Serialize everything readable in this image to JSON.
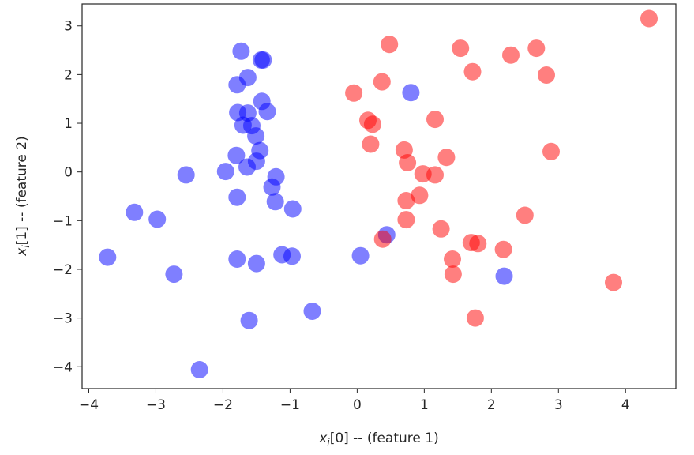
{
  "chart_data": {
    "type": "scatter",
    "xlabel": {
      "var": "x",
      "sub": "i",
      "rest": "[0] -- (feature 1)"
    },
    "ylabel": {
      "var": "x",
      "sub": "i",
      "rest": "[1] -- (feature 2)"
    },
    "xlim": [
      -4.1,
      4.75
    ],
    "ylim": [
      -4.45,
      3.45
    ],
    "xticks": [
      -4,
      -3,
      -2,
      -1,
      0,
      1,
      2,
      3,
      4
    ],
    "yticks": [
      -4,
      -3,
      -2,
      -1,
      0,
      1,
      2,
      3
    ],
    "xtick_labels": [
      "−4",
      "−3",
      "−2",
      "−1",
      "0",
      "1",
      "2",
      "3",
      "4"
    ],
    "ytick_labels": [
      "−4",
      "−3",
      "−2",
      "−1",
      "0",
      "1",
      "2",
      "3"
    ],
    "grid": false,
    "series": [
      {
        "color": "#0000ff",
        "opacity": 0.5,
        "points": [
          [
            -1.73,
            2.48
          ],
          [
            -1.4,
            2.3
          ],
          [
            -1.43,
            2.3
          ],
          [
            -1.63,
            1.94
          ],
          [
            -1.79,
            1.79
          ],
          [
            -1.42,
            1.45
          ],
          [
            -1.34,
            1.24
          ],
          [
            -1.78,
            1.22
          ],
          [
            -1.63,
            1.21
          ],
          [
            -1.7,
            0.96
          ],
          [
            -1.57,
            0.95
          ],
          [
            -1.51,
            0.74
          ],
          [
            -1.45,
            0.44
          ],
          [
            -1.8,
            0.34
          ],
          [
            -1.5,
            0.22
          ],
          [
            -1.64,
            0.1
          ],
          [
            -1.96,
            0.01
          ],
          [
            -2.55,
            -0.06
          ],
          [
            -1.21,
            -0.1
          ],
          [
            -1.27,
            -0.31
          ],
          [
            -1.79,
            -0.52
          ],
          [
            -1.22,
            -0.61
          ],
          [
            -0.96,
            -0.76
          ],
          [
            -3.32,
            -0.83
          ],
          [
            -2.98,
            -0.97
          ],
          [
            0.8,
            1.63
          ],
          [
            0.44,
            -1.29
          ],
          [
            0.05,
            -1.72
          ],
          [
            -1.12,
            -1.7
          ],
          [
            -0.97,
            -1.73
          ],
          [
            -1.79,
            -1.79
          ],
          [
            -1.5,
            -1.88
          ],
          [
            -3.72,
            -1.75
          ],
          [
            -2.73,
            -2.1
          ],
          [
            2.19,
            -2.14
          ],
          [
            -0.67,
            -2.86
          ],
          [
            -1.61,
            -3.05
          ],
          [
            -2.35,
            -4.06
          ]
        ]
      },
      {
        "color": "#ff0000",
        "opacity": 0.5,
        "points": [
          [
            4.35,
            3.15
          ],
          [
            0.48,
            2.62
          ],
          [
            1.54,
            2.54
          ],
          [
            2.67,
            2.54
          ],
          [
            2.29,
            2.4
          ],
          [
            1.72,
            2.06
          ],
          [
            2.82,
            1.99
          ],
          [
            0.37,
            1.85
          ],
          [
            -0.05,
            1.62
          ],
          [
            1.16,
            1.08
          ],
          [
            0.16,
            1.06
          ],
          [
            0.23,
            0.98
          ],
          [
            0.2,
            0.57
          ],
          [
            0.7,
            0.45
          ],
          [
            2.89,
            0.42
          ],
          [
            1.33,
            0.3
          ],
          [
            0.75,
            0.19
          ],
          [
            0.98,
            -0.04
          ],
          [
            1.16,
            -0.06
          ],
          [
            0.93,
            -0.48
          ],
          [
            0.73,
            -0.59
          ],
          [
            2.5,
            -0.89
          ],
          [
            0.73,
            -0.98
          ],
          [
            1.25,
            -1.17
          ],
          [
            0.38,
            -1.38
          ],
          [
            1.7,
            -1.45
          ],
          [
            1.8,
            -1.47
          ],
          [
            2.18,
            -1.59
          ],
          [
            1.42,
            -1.79
          ],
          [
            1.43,
            -2.1
          ],
          [
            3.82,
            -2.27
          ],
          [
            1.76,
            -3.0
          ]
        ]
      }
    ]
  }
}
